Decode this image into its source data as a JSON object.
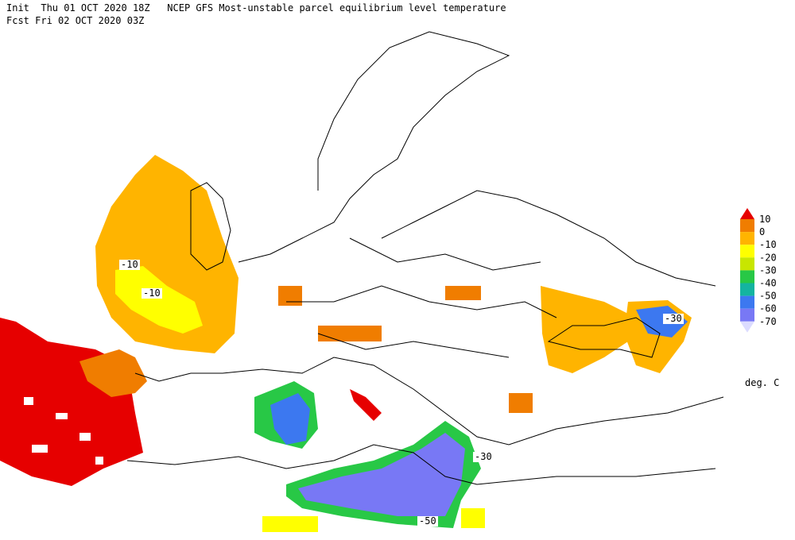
{
  "header": {
    "line1": "Init  Thu 01 OCT 2020 18Z   NCEP GFS Most-unstable parcel equilibrium level temperature",
    "line2": "Fcst Fri 02 OCT 2020 03Z"
  },
  "legend": {
    "levels": [
      10,
      0,
      -10,
      -20,
      -30,
      -40,
      -50,
      -60,
      -70
    ],
    "colors": [
      "#e60000",
      "#f07d00",
      "#ffb400",
      "#ffff00",
      "#c8e600",
      "#28c846",
      "#14b4a0",
      "#3c78f0",
      "#7878f5",
      "#b4b4ff",
      "#dcdcff"
    ],
    "unit": "deg. C"
  },
  "contour_labels": [
    -10,
    -10,
    -30,
    -30,
    -50
  ]
}
